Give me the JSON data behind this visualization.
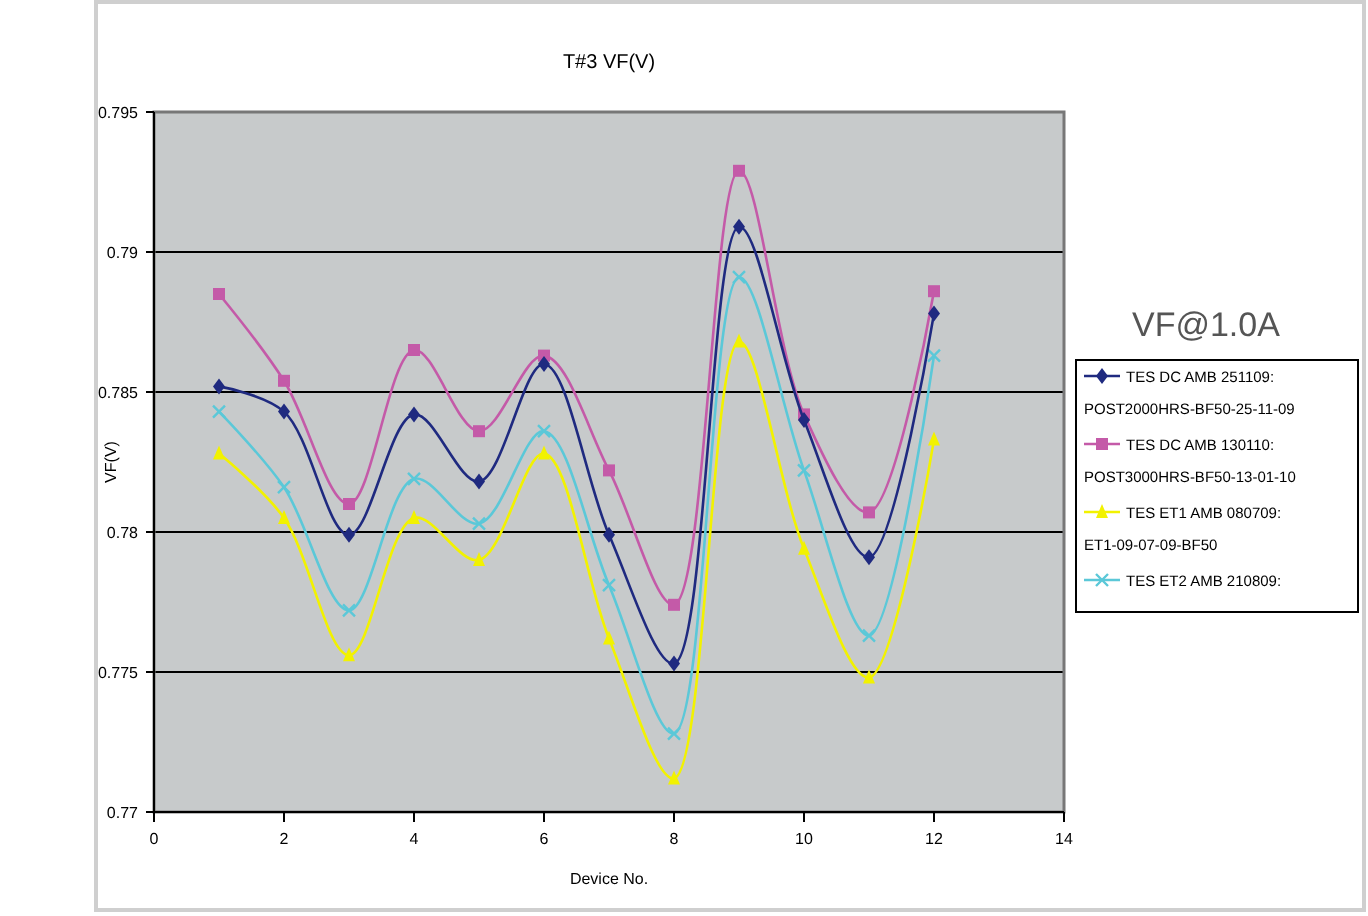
{
  "chart_data": {
    "type": "line",
    "title": "T#3 VF(V)",
    "xlabel": "Device No.",
    "ylabel": "VF(V)",
    "annotations": [
      "VF@1.0A"
    ],
    "x": [
      1,
      2,
      3,
      4,
      5,
      6,
      7,
      8,
      9,
      10,
      11,
      12
    ],
    "xlim": [
      0,
      14
    ],
    "xticks": [
      0,
      2,
      4,
      6,
      8,
      10,
      12,
      14
    ],
    "ylim": [
      0.77,
      0.795
    ],
    "yticks": [
      0.77,
      0.775,
      0.78,
      0.785,
      0.79,
      0.795
    ],
    "grid": "y",
    "legend": "right",
    "series": [
      {
        "name": "TES DC AMB 251109: POST2000HRS-BF50-25-11-09",
        "color": "#1f2a80",
        "marker": "diamond",
        "values": [
          0.7852,
          0.7843,
          0.7799,
          0.7842,
          0.7818,
          0.786,
          0.7799,
          0.7753,
          0.7909,
          0.784,
          0.7791,
          0.7878
        ]
      },
      {
        "name": "TES DC AMB 130110: POST3000HRS-BF50-13-01-10",
        "color": "#c45aa8",
        "marker": "square",
        "values": [
          0.7885,
          0.7854,
          0.781,
          0.7865,
          0.7836,
          0.7863,
          0.7822,
          0.7774,
          0.7929,
          0.7842,
          0.7807,
          0.7886
        ]
      },
      {
        "name": "TES ET1 AMB 080709: ET1-09-07-09-BF50",
        "color": "#f2f200",
        "marker": "triangle",
        "values": [
          0.7828,
          0.7805,
          0.7756,
          0.7805,
          0.779,
          0.7828,
          0.7762,
          0.7712,
          0.7868,
          0.7794,
          0.7748,
          0.7833
        ]
      },
      {
        "name": "TES ET2 AMB 210809:",
        "color": "#5bc8d8",
        "marker": "cross",
        "values": [
          0.7843,
          0.7816,
          0.7772,
          0.7819,
          0.7803,
          0.7836,
          0.7781,
          0.7728,
          0.7891,
          0.7822,
          0.7763,
          0.7863
        ]
      }
    ]
  }
}
